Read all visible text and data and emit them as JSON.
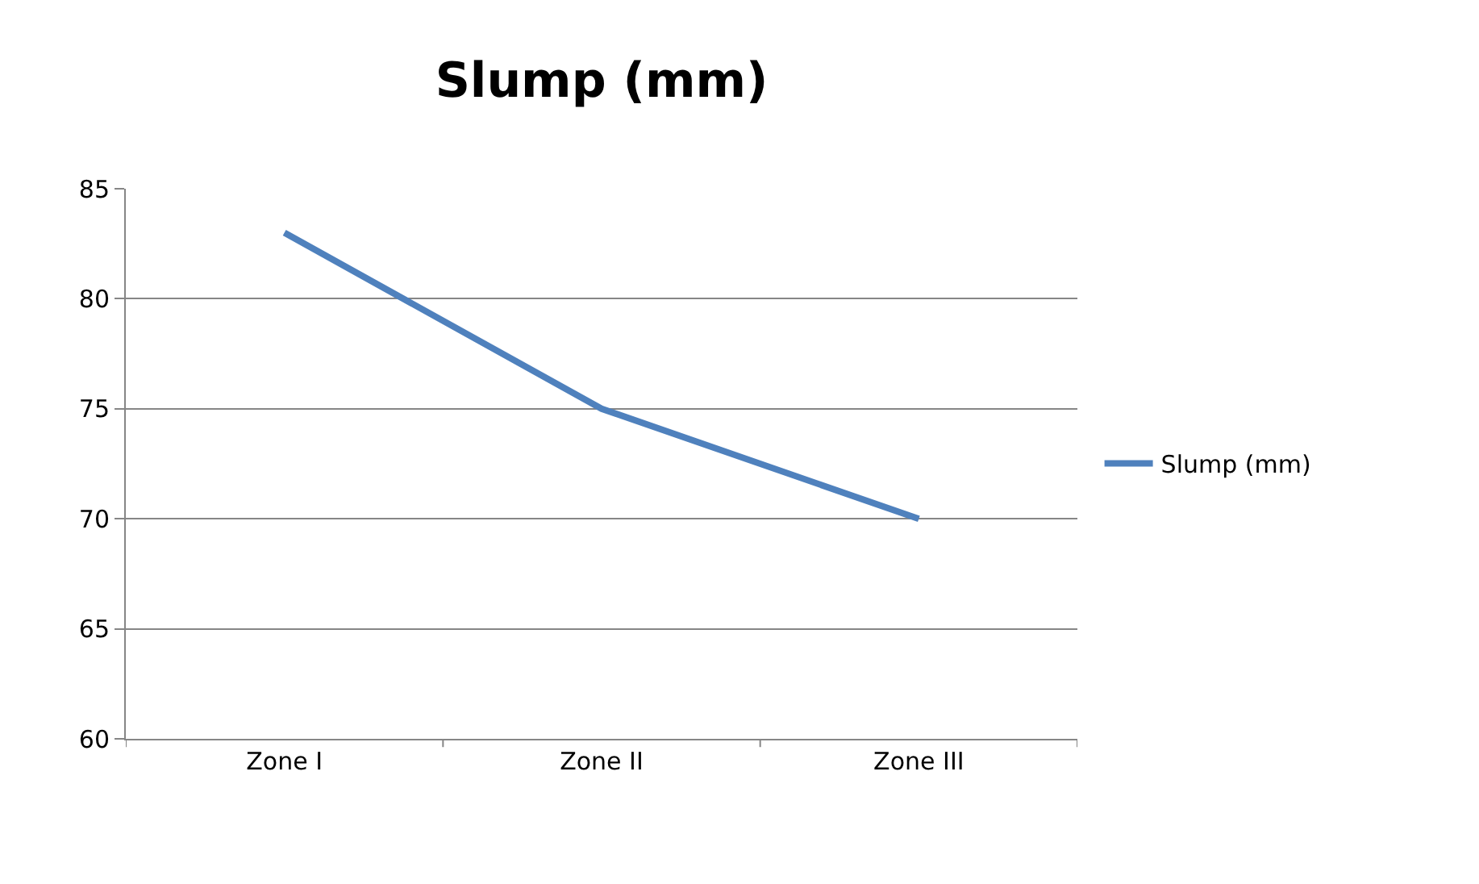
{
  "chart_data": {
    "type": "line",
    "title": "Slump (mm)",
    "categories": [
      "Zone I",
      "Zone II",
      "Zone III"
    ],
    "series": [
      {
        "name": "Slump (mm)",
        "color": "#4f81bd",
        "values": [
          83,
          75,
          70
        ]
      }
    ],
    "ylim": [
      60,
      85
    ],
    "yticks": [
      60,
      65,
      70,
      75,
      80,
      85
    ],
    "grid": "y",
    "legend": "right",
    "marker": "none"
  }
}
